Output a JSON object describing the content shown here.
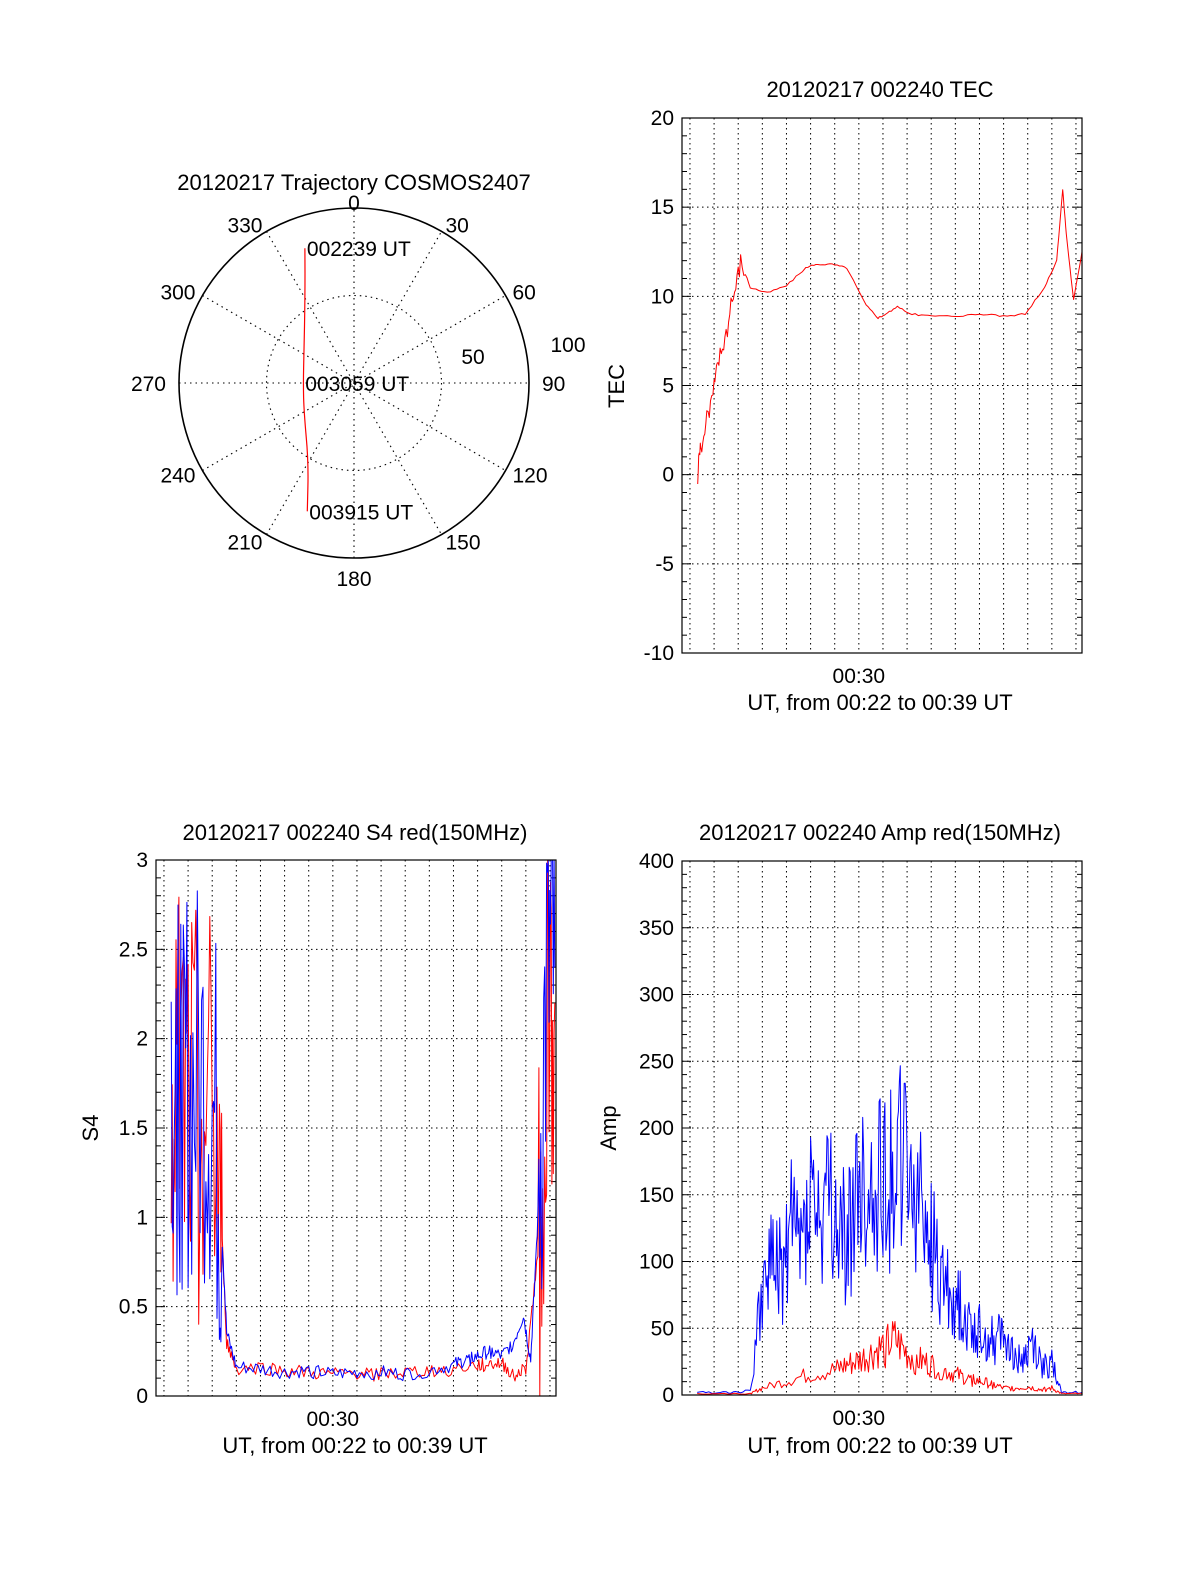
{
  "colors": {
    "red_channel": "#ff0000",
    "blue_channel": "#0000ff",
    "axis": "#000000",
    "grid": "#000000"
  },
  "chart_data": [
    {
      "id": "trajectory",
      "type": "polar",
      "title": "20120217 Trajectory COSMOS2407",
      "azimuth_labels": [
        "0",
        "30",
        "60",
        "90",
        "120",
        "150",
        "180",
        "210",
        "240",
        "270",
        "300",
        "330"
      ],
      "radial_labels": [
        "50",
        "100"
      ],
      "series": [
        {
          "color": "red",
          "points": [
            [
              -20,
              82
            ],
            [
              -30,
              56
            ],
            [
              -60,
              33
            ],
            [
              -90,
              29
            ],
            [
              -120,
              33
            ],
            [
              -150,
              52
            ],
            [
              -160,
              78
            ]
          ]
        }
      ],
      "annotations": [
        {
          "text": "002239 UT",
          "az": -20,
          "r": 82
        },
        {
          "text": "003059 UT",
          "az": -90,
          "r": 29
        },
        {
          "text": "003915 UT",
          "az": -160,
          "r": 78
        }
      ]
    },
    {
      "id": "tec",
      "type": "line",
      "title": "20120217 002240 TEC",
      "xlabel": "UT, from 00:22 to 00:39 UT",
      "ylabel": "TEC",
      "xlim": [
        22.67,
        39.25
      ],
      "ylim": [
        -10,
        20
      ],
      "yticks": [
        "-10",
        "-5",
        "0",
        "5",
        "10",
        "15",
        "20"
      ],
      "xticks": [
        {
          "value": 30,
          "label": "00:30"
        }
      ],
      "series": [
        {
          "color": "red",
          "x": [
            23.32,
            23.45,
            23.7,
            24.0,
            24.2,
            24.5,
            24.8,
            25.1,
            25.5,
            26.2,
            27.0,
            27.8,
            28.3,
            28.9,
            29.5,
            30.3,
            30.8,
            31.1,
            31.6,
            32.2,
            33.0,
            34.0,
            35.0,
            36.0,
            36.9,
            37.7,
            38.2,
            38.45,
            38.6,
            38.9,
            39.25
          ],
          "y": [
            0,
            1.5,
            3,
            5,
            6.5,
            8,
            10,
            12,
            10.5,
            10.2,
            10.6,
            11.6,
            11.8,
            11.8,
            11.6,
            9.5,
            8.8,
            9.0,
            9.4,
            9.0,
            8.9,
            8.9,
            9.0,
            8.9,
            9.0,
            10.5,
            12.0,
            16.0,
            13.5,
            9.8,
            12.5
          ]
        }
      ]
    },
    {
      "id": "s4",
      "type": "line",
      "title": "20120217 002240 S4 red(150MHz)",
      "xlabel": "UT, from 00:22 to 00:39 UT",
      "ylabel": "S4",
      "xlim": [
        22.67,
        39.25
      ],
      "ylim": [
        0,
        3
      ],
      "yticks": [
        "0",
        "0.5",
        "1",
        "1.5",
        "2",
        "2.5",
        "3"
      ],
      "xticks": [
        {
          "value": 30,
          "label": "00:30"
        }
      ],
      "series": [
        {
          "name": "",
          "color": "red",
          "x": [
            23.3,
            23.7,
            24.2,
            24.8,
            25.3,
            25.6,
            26.0,
            27.0,
            28.0,
            29.0,
            30.0,
            31.0,
            32.0,
            33.0,
            34.0,
            35.0,
            36.0,
            36.5,
            37.0,
            37.5,
            38.0,
            38.5,
            38.9,
            39.2
          ],
          "y": [
            1.9,
            1.6,
            1.5,
            1.6,
            1.2,
            0.3,
            0.15,
            0.16,
            0.14,
            0.13,
            0.12,
            0.13,
            0.12,
            0.13,
            0.14,
            0.15,
            0.17,
            0.18,
            0.18,
            0.12,
            0.15,
            0.8,
            2.3,
            2.2
          ]
        },
        {
          "name": "",
          "color": "blue",
          "x": [
            23.3,
            23.7,
            24.2,
            24.8,
            25.3,
            25.6,
            26.0,
            27.0,
            28.0,
            29.0,
            30.0,
            31.0,
            32.0,
            33.0,
            34.0,
            35.0,
            35.5,
            36.0,
            36.5,
            37.0,
            37.5,
            37.9,
            38.2,
            38.5,
            38.9,
            39.2
          ],
          "y": [
            1.8,
            1.7,
            1.6,
            1.7,
            1.2,
            0.35,
            0.16,
            0.15,
            0.13,
            0.14,
            0.12,
            0.13,
            0.13,
            0.12,
            0.14,
            0.17,
            0.2,
            0.22,
            0.25,
            0.22,
            0.3,
            0.45,
            0.2,
            1.0,
            2.3,
            2.4
          ]
        }
      ]
    },
    {
      "id": "amp",
      "type": "line",
      "title": "20120217 002240 Amp red(150MHz)",
      "xlabel": "UT, from 00:22 to 00:39 UT",
      "ylabel": "Amp",
      "xlim": [
        22.67,
        39.25
      ],
      "ylim": [
        0,
        400
      ],
      "yticks": [
        "0",
        "50",
        "100",
        "150",
        "200",
        "250",
        "300",
        "350",
        "400"
      ],
      "xticks": [
        {
          "value": 30,
          "label": "00:30"
        }
      ],
      "series": [
        {
          "name": "",
          "color": "blue",
          "x": [
            23.3,
            24.5,
            25.5,
            26.0,
            26.4,
            26.8,
            27.2,
            27.6,
            28.0,
            28.4,
            28.8,
            29.2,
            29.6,
            30.0,
            30.4,
            30.8,
            31.2,
            31.6,
            32.0,
            32.4,
            32.8,
            33.2,
            33.6,
            34.0,
            34.4,
            34.8,
            35.2,
            35.6,
            36.0,
            36.4,
            36.8,
            37.2,
            37.6,
            38.0,
            38.4,
            39.25
          ],
          "y": [
            2,
            2,
            3,
            80,
            100,
            90,
            130,
            110,
            150,
            120,
            140,
            110,
            130,
            150,
            140,
            170,
            160,
            180,
            160,
            150,
            130,
            100,
            80,
            70,
            60,
            50,
            45,
            40,
            50,
            30,
            25,
            40,
            20,
            25,
            2,
            2
          ]
        },
        {
          "name": "",
          "color": "red",
          "x": [
            23.3,
            25.5,
            26.0,
            27.0,
            28.0,
            29.0,
            29.5,
            30.0,
            30.5,
            31.0,
            31.5,
            32.0,
            32.5,
            33.0,
            33.5,
            34.0,
            34.5,
            35.0,
            35.5,
            36.0,
            36.5,
            37.0,
            37.5,
            38.0,
            38.4,
            39.25
          ],
          "y": [
            1,
            1,
            5,
            10,
            15,
            18,
            22,
            25,
            30,
            35,
            40,
            30,
            25,
            22,
            18,
            15,
            12,
            10,
            8,
            5,
            5,
            6,
            4,
            5,
            1,
            1
          ]
        }
      ]
    }
  ]
}
